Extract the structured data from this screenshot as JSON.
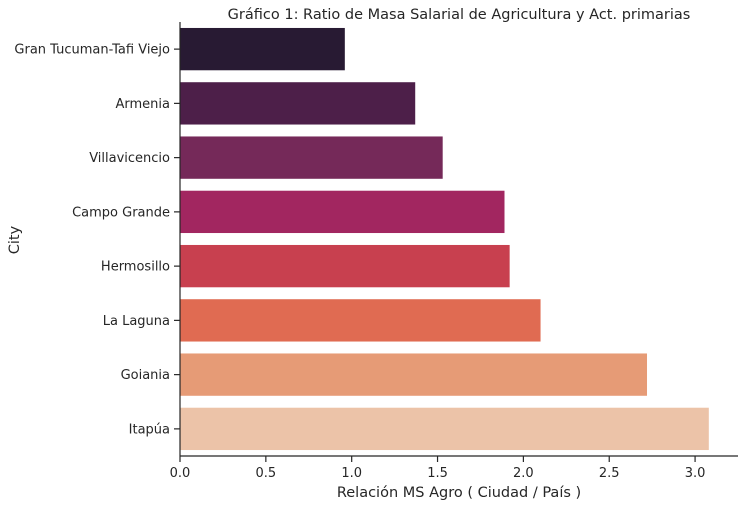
{
  "chart_data": {
    "type": "bar",
    "orientation": "horizontal",
    "title": "Gráfico 1: Ratio de Masa Salarial de Agricultura y Act. primarias",
    "xlabel": "Relación MS Agro ( Ciudad / País )",
    "ylabel": "City",
    "categories": [
      "Gran Tucuman-Tafi Viejo",
      "Armenia",
      "Villavicencio",
      "Campo Grande",
      "Hermosillo",
      "La Laguna",
      "Goiania",
      "Itapúa"
    ],
    "values": [
      0.96,
      1.37,
      1.53,
      1.89,
      1.92,
      2.1,
      2.72,
      3.08
    ],
    "colors": [
      "#281a33",
      "#4d1f49",
      "#752959",
      "#a22660",
      "#c8404f",
      "#e06b52",
      "#e69b76",
      "#ecc3a8"
    ],
    "xlim": [
      0,
      3.25
    ],
    "xticks": [
      "0.0",
      "0.5",
      "1.0",
      "1.5",
      "2.0",
      "2.5",
      "3.0"
    ],
    "grid": false,
    "legend": "none"
  }
}
